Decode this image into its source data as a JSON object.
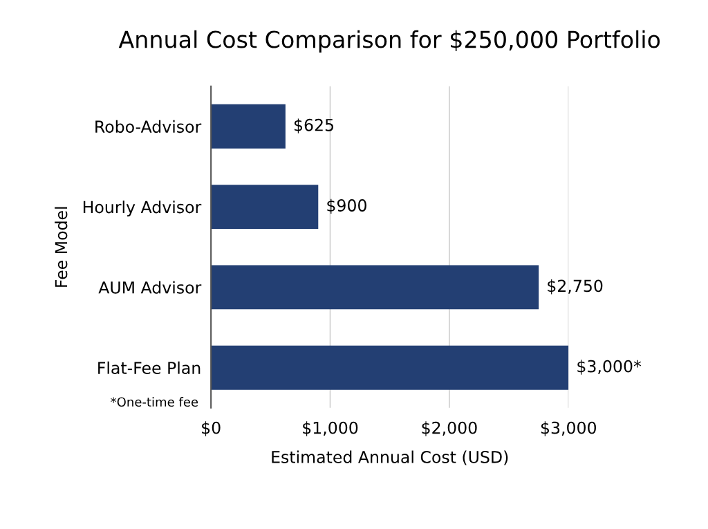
{
  "chart_data": {
    "type": "bar",
    "orientation": "horizontal",
    "title": "Annual Cost Comparison for $250,000 Portfolio",
    "xlabel": "Estimated Annual Cost (USD)",
    "ylabel": "Fee Model",
    "categories": [
      "Robo-Advisor",
      "Hourly Advisor",
      "AUM Advisor",
      "Flat-Fee Plan"
    ],
    "values": [
      625,
      900,
      2750,
      3000
    ],
    "value_labels": [
      "$625",
      "$900",
      "$2,750",
      "$3,000*"
    ],
    "color": "#233f73",
    "xlim": [
      0,
      3000
    ],
    "xticks": [
      {
        "value": 0,
        "label": "$0"
      },
      {
        "value": 1000,
        "label": "$1,000"
      },
      {
        "value": 2000,
        "label": "$2,000"
      },
      {
        "value": 3000,
        "label": "$3,000"
      }
    ],
    "grid": "x",
    "annotations": [
      "*One-time fee"
    ]
  }
}
